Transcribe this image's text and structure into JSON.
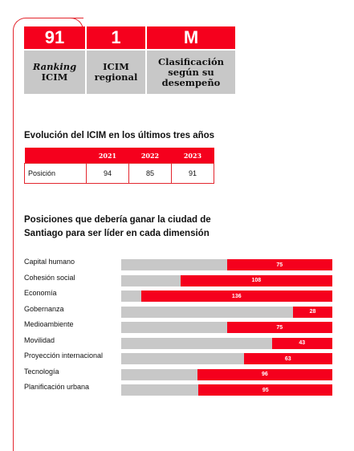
{
  "kpis": [
    {
      "value": "91",
      "label_line1": "Ranking",
      "label_line2": "ICIM",
      "italic_first": true
    },
    {
      "value": "1",
      "label_line1": "ICIM",
      "label_line2": "regional",
      "italic_first": false
    },
    {
      "value": "M",
      "label_line1": "Clasificación",
      "label_line2": "según su desempeño",
      "italic_first": false
    }
  ],
  "evolution": {
    "title": "Evolución del ICIM en los últimos tres años",
    "years": [
      "2021",
      "2022",
      "2023"
    ],
    "row_label": "Posición",
    "values": [
      "94",
      "85",
      "91"
    ]
  },
  "positions": {
    "title": "Posiciones que debería ganar la ciudad de Santiago para ser líder en cada dimensión",
    "items": [
      {
        "label": "Capital humano",
        "value": 75
      },
      {
        "label": "Cohesión social",
        "value": 108
      },
      {
        "label": "Economía",
        "value": 136
      },
      {
        "label": "Gobernanza",
        "value": 28
      },
      {
        "label": "Medioambiente",
        "value": 75
      },
      {
        "label": "Movilidad",
        "value": 43
      },
      {
        "label": "Proyección internacional",
        "value": 63
      },
      {
        "label": "Tecnología",
        "value": 96
      },
      {
        "label": "Planificación urbana",
        "value": 95
      }
    ]
  },
  "colors": {
    "accent": "#f5001d",
    "gray": "#c8c8c8"
  }
}
